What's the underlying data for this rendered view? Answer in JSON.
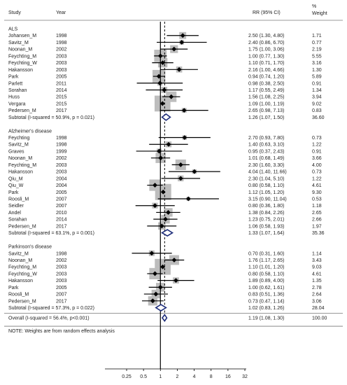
{
  "header": {
    "study": "Study",
    "year": "Year",
    "rr": "RR (95% CI)",
    "weight_line1": "%",
    "weight_line2": "Weight"
  },
  "chart_data": {
    "type": "forest",
    "x_scale": "log",
    "x_ticks": [
      0.25,
      0.5,
      1,
      2,
      4,
      8,
      16,
      32
    ],
    "x_tick_labels": [
      "0.25",
      "0.5",
      "1",
      "2",
      "4",
      "8",
      "16",
      "32"
    ],
    "reference_line": 1,
    "overall_estimate_line": 1.19,
    "groups": [
      {
        "name": "ALS",
        "studies": [
          {
            "study": "Johansen_M",
            "year": "1998",
            "rr": 2.5,
            "lo": 1.3,
            "hi": 4.8,
            "rr_text": "2.50 (1.30, 4.80)",
            "weight": "1.71"
          },
          {
            "study": "Savitz_M",
            "year": "1998",
            "rr": 2.4,
            "lo": 0.86,
            "hi": 6.7,
            "rr_text": "2.40 (0.86, 6.70)",
            "weight": "0.77"
          },
          {
            "study": "Noonan_M",
            "year": "2002",
            "rr": 1.75,
            "lo": 1.0,
            "hi": 3.06,
            "rr_text": "1.75 (1.00, 3.06)",
            "weight": "2.19"
          },
          {
            "study": "Feychting_M",
            "year": "2003",
            "rr": 1.0,
            "lo": 0.77,
            "hi": 1.3,
            "rr_text": "1.00 (0.77, 1.30)",
            "weight": "5.55"
          },
          {
            "study": "Feychting_W",
            "year": "2003",
            "rr": 1.1,
            "lo": 0.71,
            "hi": 1.7,
            "rr_text": "1.10 (0.71, 1.70)",
            "weight": "3.16"
          },
          {
            "study": "Hakansson",
            "year": "2003",
            "rr": 2.16,
            "lo": 1.0,
            "hi": 4.66,
            "rr_text": "2.16 (1.00, 4.66)",
            "weight": "1.30"
          },
          {
            "study": "Park",
            "year": "2005",
            "rr": 0.94,
            "lo": 0.74,
            "hi": 1.2,
            "rr_text": "0.94 (0.74, 1.20)",
            "weight": "5.89"
          },
          {
            "study": "Parlett",
            "year": "2011",
            "rr": 0.98,
            "lo": 0.38,
            "hi": 2.5,
            "rr_text": "0.98 (0.38, 2.50)",
            "weight": "0.91"
          },
          {
            "study": "Sorahan",
            "year": "2014",
            "rr": 1.17,
            "lo": 0.55,
            "hi": 2.49,
            "rr_text": "1.17 (0.55, 2.49)",
            "weight": "1.34"
          },
          {
            "study": "Huss",
            "year": "2015",
            "rr": 1.56,
            "lo": 1.08,
            "hi": 2.25,
            "rr_text": "1.56 (1.08, 2.25)",
            "weight": "3.94"
          },
          {
            "study": "Vergara",
            "year": "2015",
            "rr": 1.09,
            "lo": 1.0,
            "hi": 1.19,
            "rr_text": "1.09 (1.00, 1.19)",
            "weight": "9.02"
          },
          {
            "study": "Pedersen_M",
            "year": "2017",
            "rr": 2.65,
            "lo": 0.98,
            "hi": 7.13,
            "rr_text": "2.65 (0.98, 7.13)",
            "weight": "0.83"
          }
        ],
        "subtotal": {
          "label": "Subtotal  (I-squared = 50.9%, p = 0.021)",
          "rr": 1.26,
          "lo": 1.07,
          "hi": 1.5,
          "rr_text": "1.26 (1.07, 1.50)",
          "weight": "36.60"
        }
      },
      {
        "name": "Alzheimer's disease",
        "studies": [
          {
            "study": "Feychting",
            "year": "1998",
            "rr": 2.7,
            "lo": 0.93,
            "hi": 7.8,
            "rr_text": "2.70 (0.93, 7.80)",
            "weight": "0.73"
          },
          {
            "study": "Savitz_M",
            "year": "1998",
            "rr": 1.4,
            "lo": 0.63,
            "hi": 3.1,
            "rr_text": "1.40 (0.63, 3.10)",
            "weight": "1.22"
          },
          {
            "study": "Graves",
            "year": "1999",
            "rr": 0.95,
            "lo": 0.37,
            "hi": 2.43,
            "rr_text": "0.95 (0.37, 2.43)",
            "weight": "0.91"
          },
          {
            "study": "Noonan_M",
            "year": "2002",
            "rr": 1.01,
            "lo": 0.68,
            "hi": 1.49,
            "rr_text": "1.01 (0.68, 1.49)",
            "weight": "3.66"
          },
          {
            "study": "Feychting_M",
            "year": "2003",
            "rr": 2.3,
            "lo": 1.6,
            "hi": 3.3,
            "rr_text": "2.30 (1.60, 3.30)",
            "weight": "4.00"
          },
          {
            "study": "Hakansson",
            "year": "2003",
            "rr": 4.04,
            "lo": 1.4,
            "hi": 11.66,
            "rr_text": "4.04 (1.40, 11.66)",
            "weight": "0.73"
          },
          {
            "study": "Qiu_M",
            "year": "2004",
            "rr": 2.3,
            "lo": 1.04,
            "hi": 5.1,
            "rr_text": "2.30 (1.04, 5.10)",
            "weight": "1.22"
          },
          {
            "study": "Qiu_W",
            "year": "2004",
            "rr": 0.8,
            "lo": 0.58,
            "hi": 1.1,
            "rr_text": "0.80 (0.58, 1.10)",
            "weight": "4.61"
          },
          {
            "study": "Park",
            "year": "2005",
            "rr": 1.12,
            "lo": 1.05,
            "hi": 1.2,
            "rr_text": "1.12 (1.05, 1.20)",
            "weight": "9.30"
          },
          {
            "study": "Roosli_M",
            "year": "2007",
            "rr": 3.15,
            "lo": 0.9,
            "hi": 11.04,
            "rr_text": "3.15 (0.90, 11.04)",
            "weight": "0.53"
          },
          {
            "study": "Seidler",
            "year": "2007",
            "rr": 0.8,
            "lo": 0.36,
            "hi": 1.8,
            "rr_text": "0.80 (0.36, 1.80)",
            "weight": "1.18"
          },
          {
            "study": "Andel",
            "year": "2010",
            "rr": 1.38,
            "lo": 0.84,
            "hi": 2.26,
            "rr_text": "1.38 (0.84, 2.26)",
            "weight": "2.65"
          },
          {
            "study": "Sorahan",
            "year": "2014",
            "rr": 1.23,
            "lo": 0.75,
            "hi": 2.01,
            "rr_text": "1.23 (0.75, 2.01)",
            "weight": "2.66"
          },
          {
            "study": "Pedersen_M",
            "year": "2017",
            "rr": 1.06,
            "lo": 0.58,
            "hi": 1.93,
            "rr_text": "1.06 (0.58, 1.93)",
            "weight": "1.97"
          }
        ],
        "subtotal": {
          "label": "Subtotal  (I-squared = 63.1%, p = 0.001)",
          "rr": 1.33,
          "lo": 1.07,
          "hi": 1.64,
          "rr_text": "1.33 (1.07, 1.64)",
          "weight": "35.36"
        }
      },
      {
        "name": "Parkinson's disease",
        "studies": [
          {
            "study": "Savitz_M",
            "year": "1998",
            "rr": 0.7,
            "lo": 0.31,
            "hi": 1.6,
            "rr_text": "0.70 (0.31, 1.60)",
            "weight": "1.14"
          },
          {
            "study": "Noonan_M",
            "year": "2002",
            "rr": 1.76,
            "lo": 1.17,
            "hi": 2.65,
            "rr_text": "1.76 (1.17, 2.65)",
            "weight": "3.43"
          },
          {
            "study": "Feychting_M",
            "year": "2003",
            "rr": 1.1,
            "lo": 1.01,
            "hi": 1.2,
            "rr_text": "1.10 (1.01, 1.20)",
            "weight": "9.03"
          },
          {
            "study": "Feychting_W",
            "year": "2003",
            "rr": 0.8,
            "lo": 0.58,
            "hi": 1.1,
            "rr_text": "0.80 (0.58, 1.10)",
            "weight": "4.61"
          },
          {
            "study": "Hakansson",
            "year": "2003",
            "rr": 1.89,
            "lo": 0.89,
            "hi": 4.0,
            "rr_text": "1.89 (0.89, 4.00)",
            "weight": "1.35"
          },
          {
            "study": "Park",
            "year": "2005",
            "rr": 1.0,
            "lo": 0.62,
            "hi": 1.61,
            "rr_text": "1.00 (0.62, 1.61)",
            "weight": "2.78"
          },
          {
            "study": "Roosli_M",
            "year": "2007",
            "rr": 0.83,
            "lo": 0.51,
            "hi": 1.36,
            "rr_text": "0.83 (0.51, 1.36)",
            "weight": "2.64"
          },
          {
            "study": "Pedersen_M",
            "year": "2017",
            "rr": 0.73,
            "lo": 0.47,
            "hi": 1.14,
            "rr_text": "0.73 (0.47, 1.14)",
            "weight": "3.06"
          }
        ],
        "subtotal": {
          "label": "Subtotal  (I-squared = 57.3%, p = 0.022)",
          "rr": 1.02,
          "lo": 0.83,
          "hi": 1.26,
          "rr_text": "1.02 (0.83, 1.26)",
          "weight": "28.04"
        }
      }
    ],
    "overall": {
      "label": "Overall  (I-squared = 56.4%, p<0.001)",
      "rr": 1.19,
      "lo": 1.08,
      "hi": 1.3,
      "rr_text": "1.19 (1.08, 1.30)",
      "weight": "100.00"
    },
    "note": "NOTE: Weights are from random effects analysis"
  }
}
